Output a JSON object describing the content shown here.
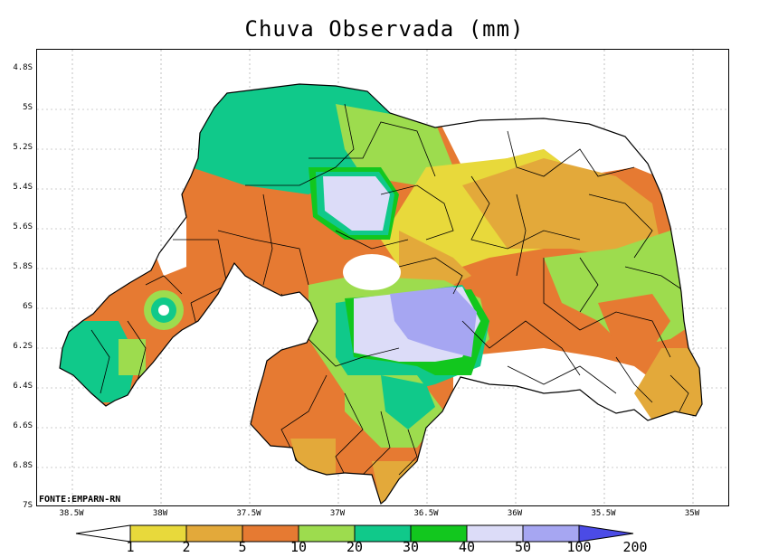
{
  "title": "Chuva Observada (mm)",
  "source": "FONTE:EMPARN-RN",
  "map": {
    "lat_ticks": [
      "4.8S",
      "5S",
      "5.2S",
      "5.4S",
      "5.6S",
      "5.8S",
      "6S",
      "6.2S",
      "6.4S",
      "6.6S",
      "6.8S",
      "7S"
    ],
    "lon_ticks": [
      "38.5W",
      "38W",
      "37.5W",
      "37W",
      "36.5W",
      "36W",
      "35.5W",
      "35W"
    ],
    "variable": "observed rainfall",
    "units": "mm",
    "state": "Rio Grande do Norte"
  },
  "legend": {
    "thresholds": [
      "1",
      "2",
      "5",
      "10",
      "20",
      "30",
      "40",
      "50",
      "100",
      "200"
    ],
    "colors": [
      "#ffffff",
      "#e8d93b",
      "#e3a93a",
      "#e67a32",
      "#9ddc4e",
      "#10c98a",
      "#12c71e",
      "#dcdcf8",
      "#a6a6f2",
      "#4b4be6"
    ]
  }
}
